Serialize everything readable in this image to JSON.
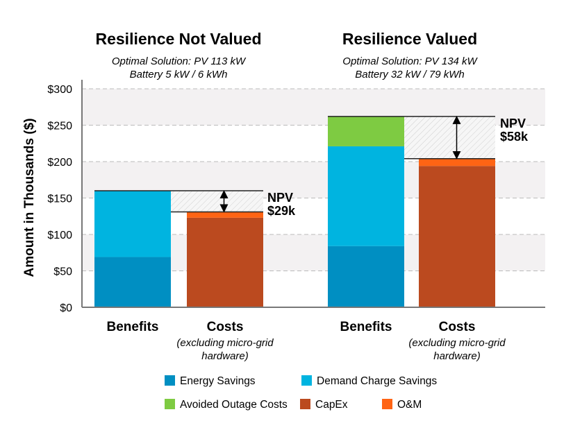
{
  "chart_data": [
    {
      "type": "bar",
      "stacked": true,
      "title": "Resilience Not Valued",
      "subtitle_lines": [
        "Optimal Solution: PV 113 kW",
        "Battery 5 kW / 6 kWh"
      ],
      "categories": [
        "Benefits",
        "Costs"
      ],
      "category_notes": [
        "",
        "(excluding micro-grid hardware)"
      ],
      "series": [
        {
          "name": "Energy Savings",
          "values": [
            69,
            0
          ]
        },
        {
          "name": "Demand Charge Savings",
          "values": [
            91,
            0
          ]
        },
        {
          "name": "Avoided Outage Costs",
          "values": [
            0,
            0
          ]
        },
        {
          "name": "CapEx",
          "values": [
            0,
            123
          ]
        },
        {
          "name": "O&M",
          "values": [
            0,
            8
          ]
        }
      ],
      "annotation": {
        "label": "NPV",
        "value": "$29k"
      }
    },
    {
      "type": "bar",
      "stacked": true,
      "title": "Resilience Valued",
      "subtitle_lines": [
        "Optimal Solution: PV 134 kW",
        "Battery 32 kW / 79 kWh"
      ],
      "categories": [
        "Benefits",
        "Costs"
      ],
      "category_notes": [
        "",
        "(excluding micro-grid hardware)"
      ],
      "series": [
        {
          "name": "Energy Savings",
          "values": [
            84,
            0
          ]
        },
        {
          "name": "Demand Charge Savings",
          "values": [
            137,
            0
          ]
        },
        {
          "name": "Avoided Outage Costs",
          "values": [
            41,
            0
          ]
        },
        {
          "name": "CapEx",
          "values": [
            0,
            194
          ]
        },
        {
          "name": "O&M",
          "values": [
            0,
            10
          ]
        }
      ],
      "annotation": {
        "label": "NPV",
        "value": "$58k"
      }
    }
  ],
  "axis": {
    "ylabel": "Amount in Thousands ($)",
    "ylim": [
      0,
      300
    ],
    "ticks": [
      "$0",
      "$50",
      "$100",
      "$150",
      "$200",
      "$250",
      "$300"
    ],
    "grid": true
  },
  "legend": {
    "placement": "bottom",
    "items": [
      "Energy Savings",
      "Demand Charge Savings",
      "Avoided Outage Costs",
      "CapEx",
      "O&M"
    ]
  },
  "colors": {
    "Energy Savings": "#008fc2",
    "Demand Charge Savings": "#00b4e0",
    "Avoided Outage Costs": "#7ecb42",
    "CapEx": "#bb4a1f",
    "O&M": "#ff6414"
  }
}
